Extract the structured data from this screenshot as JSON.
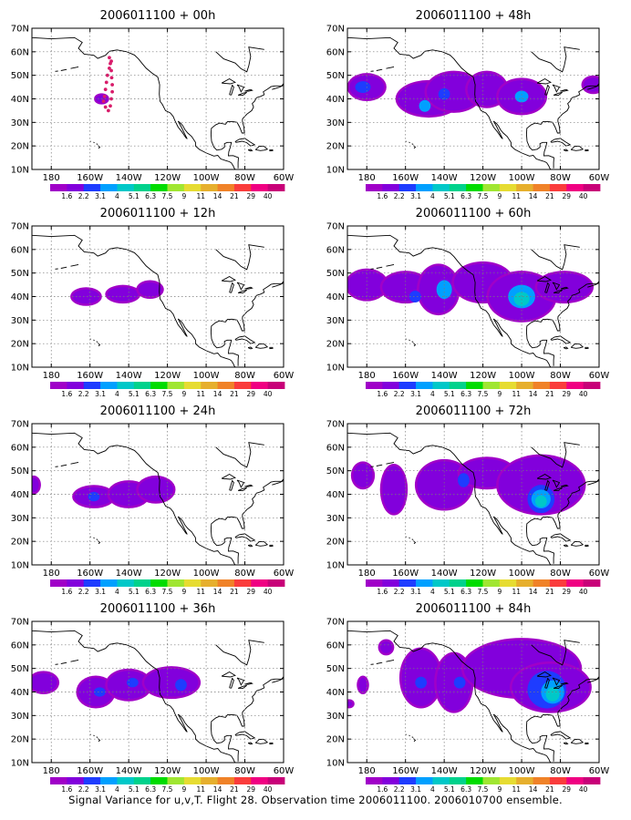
{
  "caption": "Signal Variance for u,v,T. Flight 28. Observation time 2006011100. 2006010700 ensemble.",
  "map": {
    "lat_labels": [
      "70N",
      "60N",
      "50N",
      "40N",
      "30N",
      "20N",
      "10N"
    ],
    "lon_labels": [
      "180",
      "160W",
      "140W",
      "120W",
      "100W",
      "80W",
      "60W"
    ],
    "extent": {
      "lon_min": -190,
      "lon_max": -60,
      "lat_min": 10,
      "lat_max": 70
    }
  },
  "colorbar": {
    "labels": [
      "1.6",
      "2.2",
      "3.1",
      "4",
      "5.1",
      "6.3",
      "7.5",
      "9",
      "11",
      "14",
      "21",
      "29",
      "40"
    ],
    "colors": [
      "#a000c8",
      "#8200dc",
      "#1e3cff",
      "#00a0ff",
      "#00c8c8",
      "#00d28c",
      "#00dc00",
      "#a0e632",
      "#e6dc32",
      "#e6af2d",
      "#f08228",
      "#fa3c3c",
      "#f00082",
      "#c80078"
    ]
  },
  "panels": [
    {
      "title": "2006011100 + 00h",
      "signal": []
    },
    {
      "title": "2006011100 + 48h",
      "signal": [
        {
          "lon": -180,
          "lat": 45,
          "rlon": 9,
          "rlat": 5,
          "level": 1
        },
        {
          "lon": -182,
          "lat": 45,
          "rlon": 4,
          "rlat": 2.5,
          "level": 2
        },
        {
          "lon": -148,
          "lat": 40,
          "rlon": 16,
          "rlat": 7,
          "level": 1
        },
        {
          "lon": -135,
          "lat": 43,
          "rlon": 14,
          "rlat": 8,
          "level": 1
        },
        {
          "lon": -118,
          "lat": 44,
          "rlon": 10,
          "rlat": 7,
          "level": 1
        },
        {
          "lon": -100,
          "lat": 41,
          "rlon": 12,
          "rlat": 7,
          "level": 1
        },
        {
          "lon": -150,
          "lat": 37,
          "rlon": 3,
          "rlat": 2.5,
          "level": 3
        },
        {
          "lon": -140,
          "lat": 42,
          "rlon": 3,
          "rlat": 2.5,
          "level": 2
        },
        {
          "lon": -100,
          "lat": 41,
          "rlon": 3.5,
          "rlat": 2.5,
          "level": 3
        },
        {
          "lon": -63,
          "lat": 46,
          "rlon": 5,
          "rlat": 3,
          "level": 1
        }
      ]
    },
    {
      "title": "2006011100 + 12h",
      "signal": [
        {
          "lon": -162,
          "lat": 40,
          "rlon": 7,
          "rlat": 3,
          "level": 1
        },
        {
          "lon": -143,
          "lat": 41,
          "rlon": 8,
          "rlat": 3,
          "level": 1
        },
        {
          "lon": -129,
          "lat": 43,
          "rlon": 6,
          "rlat": 3,
          "level": 1
        }
      ]
    },
    {
      "title": "2006011100 + 60h",
      "signal": [
        {
          "lon": -180,
          "lat": 45,
          "rlon": 10,
          "rlat": 6,
          "level": 1
        },
        {
          "lon": -160,
          "lat": 44,
          "rlon": 12,
          "rlat": 6,
          "level": 1
        },
        {
          "lon": -143,
          "lat": 43,
          "rlon": 10,
          "rlat": 10,
          "level": 1
        },
        {
          "lon": -120,
          "lat": 46,
          "rlon": 15,
          "rlat": 8,
          "level": 1
        },
        {
          "lon": -100,
          "lat": 40,
          "rlon": 17,
          "rlat": 10,
          "level": 1
        },
        {
          "lon": -78,
          "lat": 44,
          "rlon": 14,
          "rlat": 6,
          "level": 1
        },
        {
          "lon": -155,
          "lat": 40,
          "rlon": 3,
          "rlat": 2.5,
          "level": 2
        },
        {
          "lon": -140,
          "lat": 43,
          "rlon": 4,
          "rlat": 4,
          "level": 3
        },
        {
          "lon": -100,
          "lat": 40,
          "rlon": 7,
          "rlat": 5,
          "level": 3
        },
        {
          "lon": -100,
          "lat": 39,
          "rlon": 4,
          "rlat": 3,
          "level": 4
        }
      ]
    },
    {
      "title": "2006011100 + 24h",
      "signal": [
        {
          "lon": -189,
          "lat": 44,
          "rlon": 2.5,
          "rlat": 3,
          "level": 1
        },
        {
          "lon": -158,
          "lat": 39,
          "rlon": 10,
          "rlat": 4,
          "level": 1
        },
        {
          "lon": -140,
          "lat": 40,
          "rlon": 10,
          "rlat": 5,
          "level": 1
        },
        {
          "lon": -126,
          "lat": 42,
          "rlon": 9,
          "rlat": 5,
          "level": 1
        },
        {
          "lon": -158,
          "lat": 39,
          "rlon": 3,
          "rlat": 2,
          "level": 2
        }
      ]
    },
    {
      "title": "2006011100 + 72h",
      "signal": [
        {
          "lon": -182,
          "lat": 48,
          "rlon": 5,
          "rlat": 5,
          "level": 1
        },
        {
          "lon": -166,
          "lat": 42,
          "rlon": 6,
          "rlat": 10,
          "level": 1
        },
        {
          "lon": -140,
          "lat": 44,
          "rlon": 14,
          "rlat": 10,
          "level": 1
        },
        {
          "lon": -118,
          "lat": 49,
          "rlon": 14,
          "rlat": 6,
          "level": 1
        },
        {
          "lon": -90,
          "lat": 44,
          "rlon": 22,
          "rlat": 12,
          "level": 1
        },
        {
          "lon": -90,
          "lat": 38,
          "rlon": 7,
          "rlat": 6,
          "level": 2
        },
        {
          "lon": -90,
          "lat": 38,
          "rlon": 5,
          "rlat": 4,
          "level": 3
        },
        {
          "lon": -90,
          "lat": 37,
          "rlon": 3,
          "rlat": 2.5,
          "level": 4
        },
        {
          "lon": -130,
          "lat": 46,
          "rlon": 3,
          "rlat": 3,
          "level": 2
        }
      ]
    },
    {
      "title": "2006011100 + 36h",
      "signal": [
        {
          "lon": -184,
          "lat": 44,
          "rlon": 7,
          "rlat": 4,
          "level": 1
        },
        {
          "lon": -157,
          "lat": 40,
          "rlon": 9,
          "rlat": 6,
          "level": 1
        },
        {
          "lon": -140,
          "lat": 43,
          "rlon": 11,
          "rlat": 6,
          "level": 1
        },
        {
          "lon": -118,
          "lat": 44,
          "rlon": 14,
          "rlat": 6,
          "level": 1
        },
        {
          "lon": -113,
          "lat": 43,
          "rlon": 3,
          "rlat": 2.5,
          "level": 2
        },
        {
          "lon": -155,
          "lat": 40,
          "rlon": 3,
          "rlat": 2,
          "level": 2
        },
        {
          "lon": -138,
          "lat": 44,
          "rlon": 3,
          "rlat": 2,
          "level": 2
        }
      ]
    },
    {
      "title": "2006011100 + 84h",
      "signal": [
        {
          "lon": -189,
          "lat": 35,
          "rlon": 1.5,
          "rlat": 1,
          "level": 1
        },
        {
          "lon": -170,
          "lat": 59,
          "rlon": 3,
          "rlat": 2.5,
          "level": 1
        },
        {
          "lon": -182,
          "lat": 43,
          "rlon": 2,
          "rlat": 3,
          "level": 1
        },
        {
          "lon": -152,
          "lat": 46,
          "rlon": 10,
          "rlat": 12,
          "level": 1
        },
        {
          "lon": -135,
          "lat": 44,
          "rlon": 9,
          "rlat": 12,
          "level": 1
        },
        {
          "lon": -100,
          "lat": 50,
          "rlon": 30,
          "rlat": 12,
          "level": 1
        },
        {
          "lon": -85,
          "lat": 42,
          "rlon": 20,
          "rlat": 10,
          "level": 1
        },
        {
          "lon": -87,
          "lat": 41,
          "rlon": 10,
          "rlat": 8,
          "level": 2
        },
        {
          "lon": -84,
          "lat": 40,
          "rlon": 6,
          "rlat": 5,
          "level": 3
        },
        {
          "lon": -84,
          "lat": 39,
          "rlon": 3.5,
          "rlat": 3,
          "level": 4
        },
        {
          "lon": -152,
          "lat": 44,
          "rlon": 3,
          "rlat": 2.5,
          "level": 2
        },
        {
          "lon": -132,
          "lat": 44,
          "rlon": 3,
          "rlat": 2.5,
          "level": 2
        }
      ]
    }
  ],
  "flight_track": {
    "panel": 0,
    "color": "#d81c6a",
    "points": [
      [
        -149,
        56
      ],
      [
        -150,
        53
      ],
      [
        -151,
        50
      ],
      [
        -151.5,
        47
      ],
      [
        -152,
        44
      ],
      [
        -152.5,
        41
      ],
      [
        -153,
        39
      ],
      [
        -152,
        36.5
      ],
      [
        -150.5,
        35
      ],
      [
        -149.5,
        37
      ],
      [
        -149,
        40
      ],
      [
        -148.5,
        43
      ],
      [
        -148.5,
        46
      ],
      [
        -148.8,
        49
      ],
      [
        -149,
        52
      ],
      [
        -149.5,
        55
      ],
      [
        -150,
        57.5
      ]
    ],
    "blob": {
      "lon": -154,
      "lat": 40,
      "rlon": 3,
      "rlat": 1.6
    }
  }
}
